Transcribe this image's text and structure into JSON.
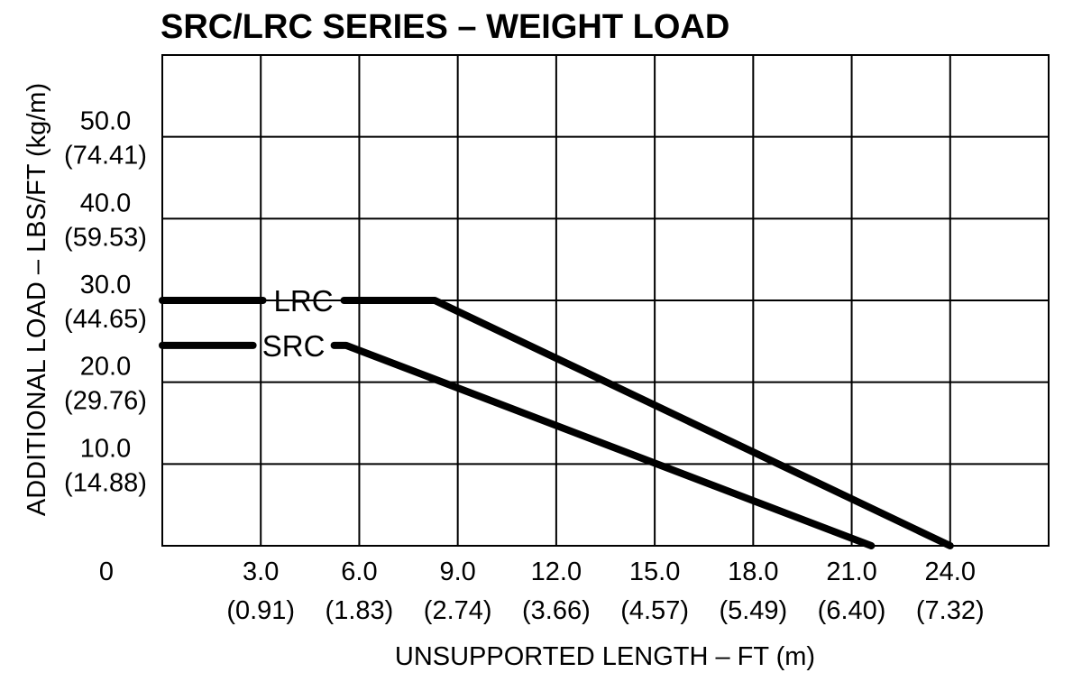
{
  "chart_data": {
    "type": "line",
    "title": "SRC/LRC SERIES – WEIGHT LOAD",
    "xlabel": "UNSUPPORTED LENGTH – FT (m)",
    "ylabel": "ADDITIONAL LOAD – LBS/FT (kg/m)",
    "xlim": [
      0,
      27
    ],
    "ylim": [
      0,
      60
    ],
    "grid": true,
    "origin_label": "0",
    "x_ticks": [
      {
        "value": 3,
        "label": "3.0",
        "sublabel": "(0.91)"
      },
      {
        "value": 6,
        "label": "6.0",
        "sublabel": "(1.83)"
      },
      {
        "value": 9,
        "label": "9.0",
        "sublabel": "(2.74)"
      },
      {
        "value": 12,
        "label": "12.0",
        "sublabel": "(3.66)"
      },
      {
        "value": 15,
        "label": "15.0",
        "sublabel": "(4.57)"
      },
      {
        "value": 18,
        "label": "18.0",
        "sublabel": "(5.49)"
      },
      {
        "value": 21,
        "label": "21.0",
        "sublabel": "(6.40)"
      },
      {
        "value": 24,
        "label": "24.0",
        "sublabel": "(7.32)"
      }
    ],
    "y_ticks": [
      {
        "value": 10,
        "label": "10.0",
        "sublabel": "(14.88)"
      },
      {
        "value": 20,
        "label": "20.0",
        "sublabel": "(29.76)"
      },
      {
        "value": 30,
        "label": "30.0",
        "sublabel": "(44.65)"
      },
      {
        "value": 40,
        "label": "40.0",
        "sublabel": "(59.53)"
      },
      {
        "value": 50,
        "label": "50.0",
        "sublabel": "(74.41)"
      }
    ],
    "series": [
      {
        "name": "LRC",
        "label_at_x": 4.3,
        "x": [
          0,
          8.3,
          24.0
        ],
        "y": [
          30.0,
          30.0,
          0
        ]
      },
      {
        "name": "SRC",
        "label_at_x": 4.0,
        "x": [
          0,
          5.6,
          21.6
        ],
        "y": [
          24.5,
          24.5,
          0
        ]
      }
    ]
  }
}
